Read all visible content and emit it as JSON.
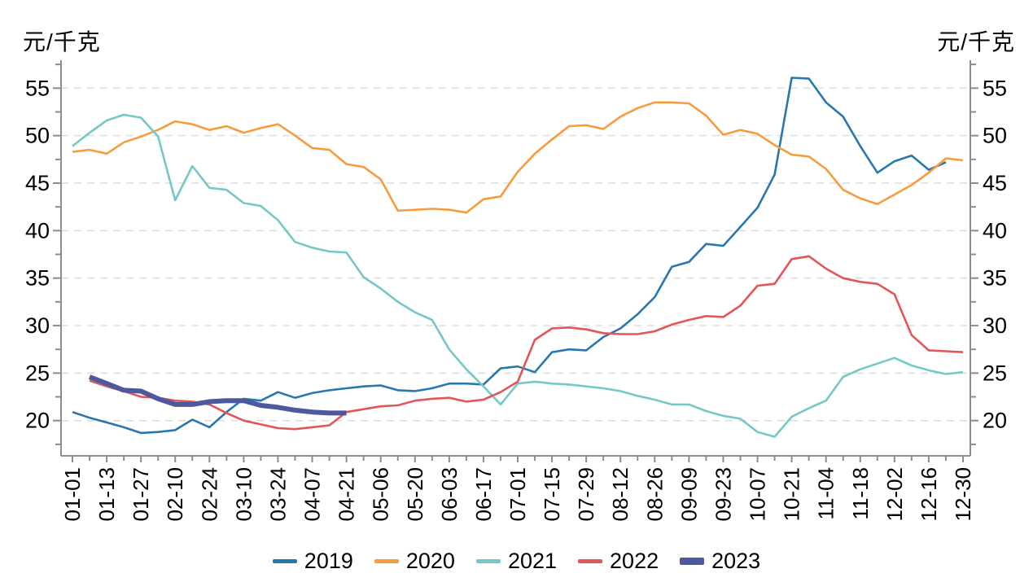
{
  "y_axis_title_left": "元/千克",
  "y_axis_title_right": "元/千克",
  "chart_data": {
    "type": "line",
    "title": "",
    "xlabel": "",
    "ylabel_left": "元/千克",
    "ylabel_right": "元/千克",
    "ylim": [
      17.5,
      57.5
    ],
    "y_ticks": [
      20,
      25,
      30,
      35,
      40,
      45,
      50,
      55
    ],
    "y_minor_step": 2.5,
    "grid": "horizontal-dashed",
    "legend_position": "bottom-center",
    "axis_color": "#8c8c8c",
    "grid_color": "#dcdcdc",
    "text_color": "#000000",
    "x_dates": [
      "01-01",
      "01-07",
      "01-13",
      "01-20",
      "01-27",
      "02-03",
      "02-10",
      "02-17",
      "02-24",
      "03-03",
      "03-10",
      "03-17",
      "03-24",
      "03-31",
      "04-07",
      "04-14",
      "04-21",
      "04-28",
      "05-06",
      "05-13",
      "05-20",
      "05-27",
      "06-03",
      "06-10",
      "06-17",
      "06-24",
      "07-01",
      "07-08",
      "07-15",
      "07-22",
      "07-29",
      "08-05",
      "08-12",
      "08-19",
      "08-26",
      "09-02",
      "09-09",
      "09-16",
      "09-23",
      "09-30",
      "10-07",
      "10-14",
      "10-21",
      "10-28",
      "11-04",
      "11-11",
      "11-18",
      "11-25",
      "12-02",
      "12-09",
      "12-16",
      "12-23",
      "12-30"
    ],
    "x_tick_labels": [
      "01-01",
      "01-13",
      "01-27",
      "02-10",
      "02-24",
      "03-10",
      "03-24",
      "04-07",
      "04-21",
      "05-06",
      "05-20",
      "06-03",
      "06-17",
      "07-01",
      "07-15",
      "07-29",
      "08-12",
      "08-26",
      "09-09",
      "09-23",
      "10-07",
      "10-21",
      "11-04",
      "11-18",
      "12-02",
      "12-16",
      "12-30"
    ],
    "series": [
      {
        "name": "2019",
        "color": "#2878ae",
        "width": 2.6,
        "values": [
          20.9,
          20.3,
          19.8,
          19.3,
          18.7,
          18.8,
          19.0,
          20.1,
          19.3,
          20.9,
          22.3,
          22.1,
          23.0,
          22.4,
          22.9,
          23.2,
          23.4,
          23.6,
          23.7,
          23.2,
          23.1,
          23.4,
          23.9,
          23.9,
          23.8,
          25.5,
          25.7,
          25.1,
          27.2,
          27.5,
          27.4,
          28.8,
          29.7,
          31.2,
          33.0,
          36.2,
          36.7,
          38.6,
          38.4,
          40.4,
          42.4,
          45.9,
          56.1,
          56.0,
          53.5,
          52.0,
          48.9,
          46.1,
          47.3,
          47.9,
          46.4,
          47.2,
          null
        ]
      },
      {
        "name": "2020",
        "color": "#f79c3d",
        "width": 2.6,
        "values": [
          48.3,
          48.5,
          48.1,
          49.3,
          49.9,
          50.6,
          51.5,
          51.2,
          50.6,
          51.0,
          50.3,
          50.8,
          51.2,
          50.0,
          48.7,
          48.5,
          47.0,
          46.7,
          45.4,
          42.1,
          42.2,
          42.3,
          42.2,
          41.9,
          43.3,
          43.6,
          46.2,
          48.1,
          49.6,
          51.0,
          51.1,
          50.7,
          52.0,
          52.9,
          53.5,
          53.5,
          53.4,
          52.1,
          50.1,
          50.6,
          50.2,
          49.0,
          48.0,
          47.8,
          46.5,
          44.3,
          43.4,
          42.8,
          43.8,
          44.8,
          46.1,
          47.6,
          47.4
        ]
      },
      {
        "name": "2021",
        "color": "#74c8c6",
        "width": 2.6,
        "values": [
          48.9,
          50.3,
          51.6,
          52.2,
          51.9,
          49.9,
          43.2,
          46.8,
          44.5,
          44.3,
          42.9,
          42.6,
          41.1,
          38.8,
          38.2,
          37.8,
          37.7,
          35.1,
          33.9,
          32.5,
          31.4,
          30.6,
          27.5,
          25.4,
          23.6,
          21.7,
          23.9,
          24.1,
          23.9,
          23.8,
          23.6,
          23.4,
          23.1,
          22.6,
          22.2,
          21.7,
          21.7,
          21.0,
          20.5,
          20.2,
          18.8,
          18.3,
          20.4,
          21.3,
          22.1,
          24.6,
          25.4,
          26.0,
          26.6,
          25.8,
          25.3,
          24.9,
          25.1
        ]
      },
      {
        "name": "2022",
        "color": "#e25559",
        "width": 2.6,
        "values": [
          null,
          24.2,
          23.6,
          23.1,
          22.5,
          22.4,
          22.1,
          22.0,
          21.7,
          20.8,
          20.0,
          19.6,
          19.2,
          19.1,
          19.3,
          19.5,
          20.9,
          21.2,
          21.5,
          21.6,
          22.1,
          22.3,
          22.4,
          22.0,
          22.2,
          23.0,
          24.1,
          28.5,
          29.7,
          29.8,
          29.6,
          29.2,
          29.1,
          29.1,
          29.4,
          30.1,
          30.6,
          31.0,
          30.9,
          32.1,
          34.2,
          34.4,
          37.0,
          37.3,
          36.0,
          35.0,
          34.6,
          34.4,
          33.3,
          29.0,
          27.4,
          27.3,
          27.2
        ]
      },
      {
        "name": "2023",
        "color": "#4d589d",
        "width": 6,
        "values": [
          null,
          24.6,
          23.9,
          23.2,
          23.1,
          22.3,
          21.7,
          21.7,
          22.0,
          22.1,
          22.1,
          21.6,
          21.4,
          21.1,
          20.9,
          20.8,
          20.8,
          null,
          null,
          null,
          null,
          null,
          null,
          null,
          null,
          null,
          null,
          null,
          null,
          null,
          null,
          null,
          null,
          null,
          null,
          null,
          null,
          null,
          null,
          null,
          null,
          null,
          null,
          null,
          null,
          null,
          null,
          null,
          null,
          null,
          null,
          null,
          null
        ]
      }
    ]
  }
}
